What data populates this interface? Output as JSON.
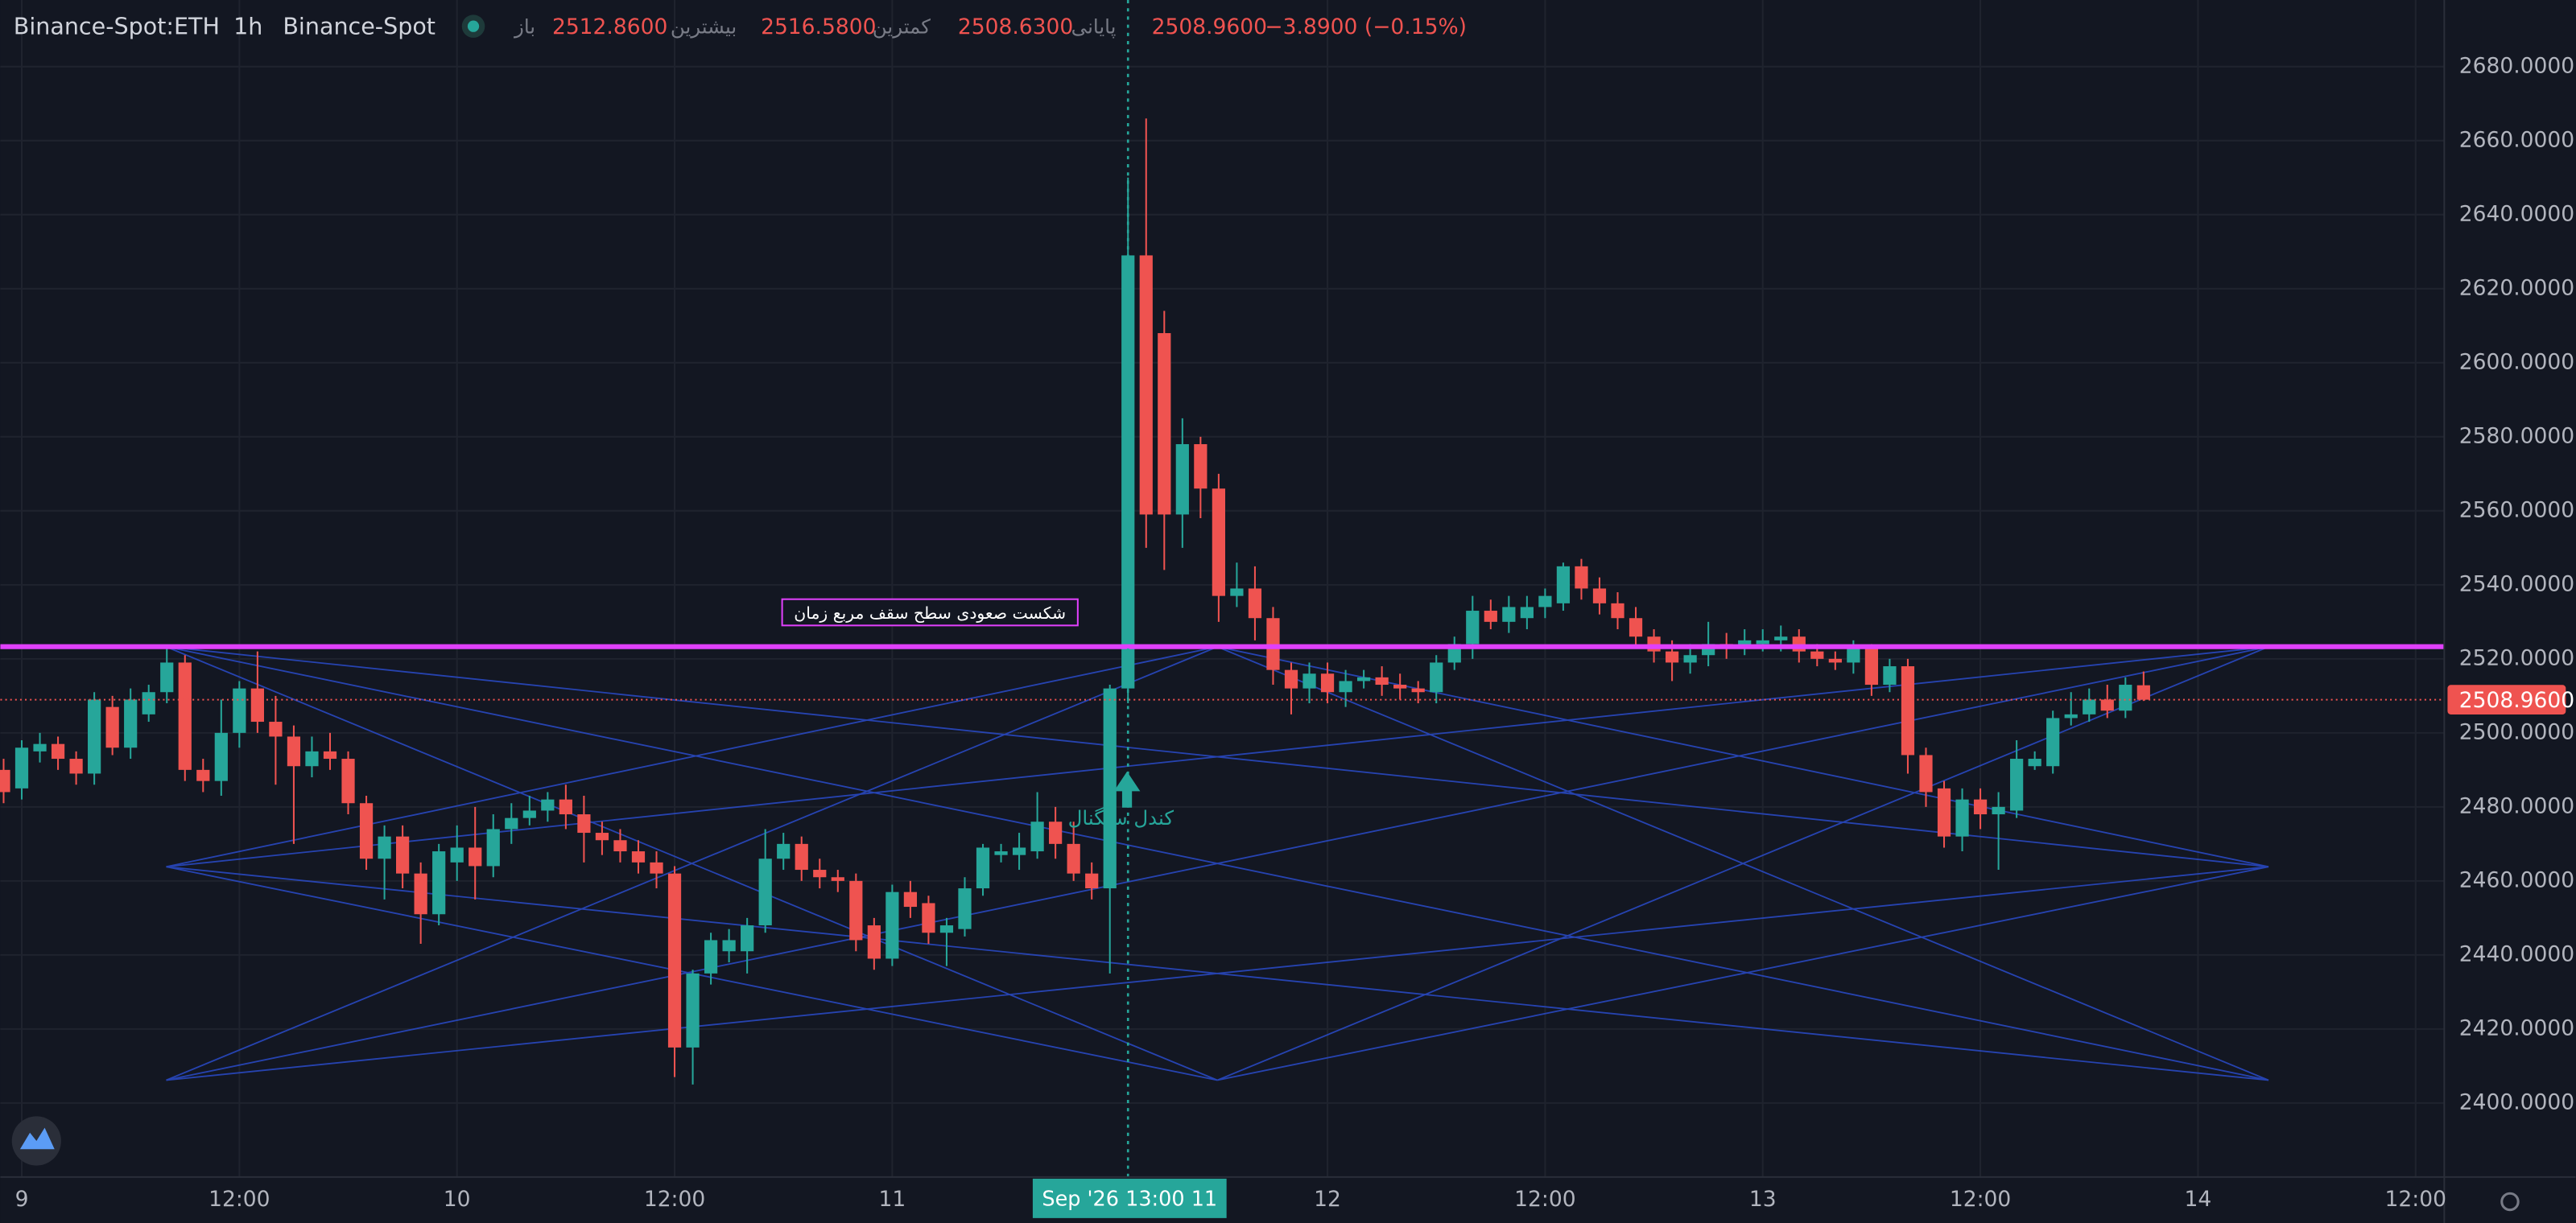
{
  "chart_data": {
    "type": "candlestick",
    "header": {
      "symbol": "Binance-Spot:ETH",
      "interval": "1h",
      "exchange": "Binance-Spot",
      "open_label": "باز",
      "open": "2512.8600",
      "high_label": "بیشترین",
      "high": "2516.5800",
      "low_label": "کمترین",
      "low": "2508.6300",
      "close_label": "پایانی",
      "close": "2508.9600",
      "change": "−3.8900 (−0.15%)"
    },
    "up_color": "#26a69a",
    "down_color": "#ef5350",
    "x": [
      -1,
      0,
      1,
      2,
      3,
      4,
      5,
      6,
      7,
      8,
      9,
      10,
      11,
      12,
      13,
      14,
      15,
      16,
      17,
      18,
      19,
      20,
      21,
      22,
      23,
      24,
      25,
      26,
      27,
      28,
      29,
      30,
      31,
      32,
      33,
      34,
      35,
      36,
      37,
      38,
      39,
      40,
      41,
      42,
      43,
      44,
      45,
      46,
      47,
      48,
      49,
      50,
      51,
      52,
      53,
      54,
      55,
      56,
      57,
      58,
      59,
      60,
      61,
      62,
      63,
      64,
      65,
      66,
      67,
      68,
      69,
      70,
      71,
      72,
      73,
      74,
      75,
      76,
      77,
      78,
      79,
      80,
      81,
      82,
      83,
      84,
      85,
      86,
      87,
      88,
      89,
      90,
      91,
      92,
      93,
      94,
      95,
      96,
      97,
      98,
      99,
      100,
      101,
      102,
      103,
      104,
      105,
      106,
      107,
      108,
      109,
      110,
      111,
      112,
      113,
      114,
      115,
      116,
      117
    ],
    "open": [
      2490,
      2485,
      2495,
      2497,
      2493,
      2489,
      2507,
      2496,
      2505,
      2511,
      2519,
      2490,
      2487,
      2500,
      2512,
      2503,
      2499,
      2491,
      2495,
      2493,
      2481,
      2466,
      2472,
      2462,
      2451,
      2465,
      2469,
      2464,
      2474,
      2477,
      2479,
      2482,
      2478,
      2473,
      2471,
      2468,
      2465,
      2462,
      2415,
      2435,
      2441,
      2441,
      2448,
      2466,
      2470,
      2463,
      2461,
      2460,
      2448,
      2439,
      2457,
      2454,
      2446,
      2447,
      2458,
      2467,
      2467,
      2468,
      2476,
      2470,
      2462,
      2458,
      2512,
      2629,
      2608,
      2559,
      2578,
      2566,
      2537,
      2539,
      2531,
      2517,
      2512,
      2516,
      2511,
      2514,
      2515,
      2513,
      2512,
      2511,
      2519,
      2524,
      2533,
      2530,
      2531,
      2534,
      2535,
      2545,
      2539,
      2535,
      2531,
      2526,
      2522,
      2519,
      2521,
      2524,
      2523,
      2524,
      2525,
      2526,
      2522,
      2520,
      2519,
      2523,
      2513,
      2518,
      2494,
      2485,
      2472,
      2482,
      2478,
      2479,
      2491,
      2491,
      2504,
      2505,
      2509,
      2506,
      2512.86
    ],
    "high": [
      2493,
      2498,
      2500,
      2499,
      2495,
      2511,
      2510,
      2512,
      2513,
      2523,
      2521,
      2493,
      2509,
      2514,
      2522,
      2510,
      2502,
      2499,
      2500,
      2495,
      2483,
      2475,
      2475,
      2465,
      2470,
      2475,
      2480,
      2478,
      2481,
      2483,
      2484,
      2486,
      2483,
      2476,
      2474,
      2471,
      2468,
      2464,
      2436,
      2446,
      2447,
      2450,
      2474,
      2473,
      2472,
      2466,
      2463,
      2462,
      2450,
      2459,
      2460,
      2456,
      2450,
      2461,
      2470,
      2470,
      2473,
      2484,
      2480,
      2476,
      2465,
      2513,
      2650,
      2666,
      2614,
      2585,
      2580,
      2570,
      2546,
      2545,
      2534,
      2519,
      2519,
      2519,
      2517,
      2517,
      2518,
      2516,
      2514,
      2521,
      2526,
      2537,
      2536,
      2537,
      2537,
      2539,
      2546,
      2547,
      2542,
      2538,
      2534,
      2528,
      2525,
      2524,
      2530,
      2527,
      2528,
      2528,
      2529,
      2528,
      2524,
      2522,
      2525,
      2524,
      2520,
      2520,
      2496,
      2487,
      2485,
      2485,
      2484,
      2498,
      2495,
      2506,
      2511,
      2512,
      2513,
      2515,
      2516.58
    ],
    "low": [
      2481,
      2482,
      2492,
      2490,
      2486,
      2486,
      2494,
      2493,
      2503,
      2508,
      2487,
      2484,
      2483,
      2496,
      2500,
      2486,
      2470,
      2488,
      2490,
      2478,
      2463,
      2455,
      2458,
      2443,
      2448,
      2460,
      2455,
      2461,
      2470,
      2475,
      2476,
      2474,
      2465,
      2467,
      2465,
      2462,
      2458,
      2407,
      2405,
      2432,
      2438,
      2435,
      2446,
      2463,
      2460,
      2458,
      2457,
      2441,
      2436,
      2437,
      2450,
      2443,
      2437,
      2445,
      2456,
      2465,
      2463,
      2466,
      2466,
      2460,
      2455,
      2435,
      2508,
      2550,
      2544,
      2550,
      2558,
      2530,
      2534,
      2525,
      2513,
      2505,
      2508,
      2508,
      2507,
      2512,
      2510,
      2509,
      2508,
      2508,
      2517,
      2520,
      2528,
      2527,
      2528,
      2531,
      2533,
      2536,
      2532,
      2528,
      2523,
      2519,
      2514,
      2516,
      2518,
      2520,
      2521,
      2522,
      2522,
      2519,
      2518,
      2517,
      2516,
      2510,
      2511,
      2489,
      2480,
      2469,
      2468,
      2474,
      2463,
      2477,
      2490,
      2489,
      2502,
      2503,
      2504,
      2504,
      2508.63
    ],
    "close": [
      2484,
      2496,
      2497,
      2493,
      2489,
      2509,
      2496,
      2509,
      2511,
      2519,
      2490,
      2487,
      2500,
      2512,
      2503,
      2499,
      2491,
      2495,
      2493,
      2481,
      2466,
      2472,
      2462,
      2451,
      2468,
      2469,
      2464,
      2474,
      2477,
      2479,
      2482,
      2478,
      2473,
      2471,
      2468,
      2465,
      2462,
      2415,
      2435,
      2444,
      2444,
      2448,
      2466,
      2470,
      2463,
      2461,
      2460,
      2444,
      2439,
      2457,
      2453,
      2446,
      2448,
      2458,
      2469,
      2468,
      2469,
      2476,
      2470,
      2462,
      2458,
      2512,
      2629,
      2559,
      2559,
      2578,
      2566,
      2537,
      2539,
      2531,
      2517,
      2512,
      2516,
      2511,
      2514,
      2515,
      2513,
      2512,
      2511,
      2519,
      2524,
      2533,
      2530,
      2534,
      2534,
      2537,
      2545,
      2539,
      2535,
      2531,
      2526,
      2522,
      2519,
      2521,
      2524,
      2523,
      2525,
      2525,
      2526,
      2522,
      2520,
      2519,
      2523,
      2513,
      2518,
      2494,
      2484,
      2472,
      2482,
      2478,
      2480,
      2493,
      2493,
      2504,
      2505,
      2509,
      2506,
      2513,
      2508.96
    ],
    "xlim": [
      -1.18,
      133.58
    ],
    "xticks": [
      {
        "value": 0,
        "label": "9"
      },
      {
        "value": 12,
        "label": "12:00"
      },
      {
        "value": 24,
        "label": "10"
      },
      {
        "value": 36,
        "label": "12:00"
      },
      {
        "value": 48,
        "label": "11"
      },
      {
        "value": 72,
        "label": "12"
      },
      {
        "value": 84,
        "label": "12:00"
      },
      {
        "value": 96,
        "label": "13"
      },
      {
        "value": 108,
        "label": "12:00"
      },
      {
        "value": 120,
        "label": "14"
      },
      {
        "value": 132,
        "label": "12:00"
      }
    ],
    "ylim": [
      2380,
      2698
    ],
    "yticks": [
      {
        "value": 2400,
        "label": "2400.0000"
      },
      {
        "value": 2420,
        "label": "2420.0000"
      },
      {
        "value": 2440,
        "label": "2440.0000"
      },
      {
        "value": 2460,
        "label": "2460.0000"
      },
      {
        "value": 2480,
        "label": "2480.0000"
      },
      {
        "value": 2500,
        "label": "2500.0000"
      },
      {
        "value": 2520,
        "label": "2520.0000"
      },
      {
        "value": 2540,
        "label": "2540.0000"
      },
      {
        "value": 2560,
        "label": "2560.0000"
      },
      {
        "value": 2580,
        "label": "2580.0000"
      },
      {
        "value": 2600,
        "label": "2600.0000"
      },
      {
        "value": 2620,
        "label": "2620.0000"
      },
      {
        "value": 2640,
        "label": "2640.0000"
      },
      {
        "value": 2660,
        "label": "2660.0000"
      },
      {
        "value": 2680,
        "label": "2680.0000"
      }
    ],
    "grid": true,
    "last_price": {
      "value": 2508.96,
      "label": "2508.9600"
    },
    "crosshair": {
      "x": 61,
      "label": "Sep '26   13:00 11"
    },
    "level_line": {
      "value": 2523.3,
      "color": "#e040fb"
    },
    "annotations": {
      "breakout": "شکست صعودی سطح سقف مربع زمان",
      "signal": "کندل سیگنال"
    }
  }
}
